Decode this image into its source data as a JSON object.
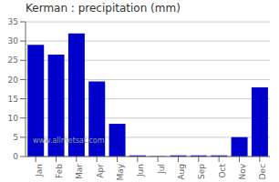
{
  "chart_data": {
    "type": "bar",
    "title": "Kerman : precipitation (mm)",
    "categories": [
      "Jan",
      "Feb",
      "Mar",
      "Apr",
      "May",
      "Jun",
      "Jul",
      "Aug",
      "Sep",
      "Oct",
      "Nov",
      "Dec"
    ],
    "values": [
      29,
      26.5,
      32,
      19.5,
      8.5,
      0.3,
      0.1,
      0.3,
      0.3,
      0.3,
      5,
      18
    ],
    "color": "#0000cc",
    "ylim": [
      0,
      35
    ],
    "yticks": [
      0,
      5,
      10,
      15,
      20,
      25,
      30,
      35
    ],
    "grid": true,
    "annotations": [
      "www.allmetsat.com"
    ]
  }
}
